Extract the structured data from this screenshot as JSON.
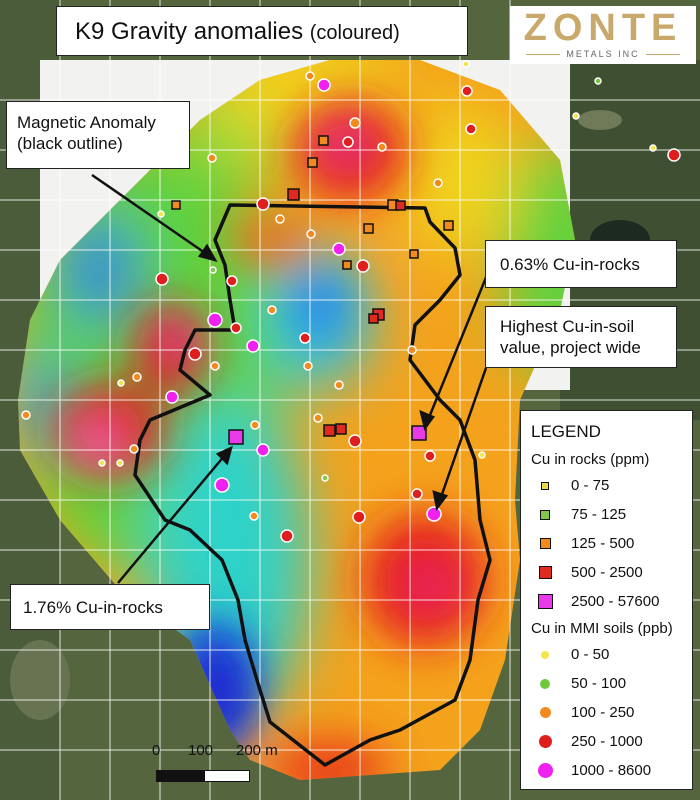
{
  "title": {
    "main": "K9 Gravity anomalies",
    "sub": "(coloured)"
  },
  "logo": {
    "name": "ZONTE",
    "tagline": "METALS INC",
    "color": "#c9a86b"
  },
  "callouts": {
    "magnetic_line1": "Magnetic Anomaly",
    "magnetic_line2": "(black outline)",
    "cu_063": "0.63% Cu-in-rocks",
    "highest_line1": "Highest Cu-in-soil",
    "highest_line2": "value, project wide",
    "cu_176": "1.76% Cu-in-rocks"
  },
  "legend": {
    "title": "LEGEND",
    "rocks_title": "Cu in rocks (ppm)",
    "rocks": [
      {
        "label": "0 - 75",
        "color": "#e8d84a",
        "shape": "square"
      },
      {
        "label": "75 - 125",
        "color": "#7fc84a",
        "shape": "square"
      },
      {
        "label": "125 - 500",
        "color": "#f28a1e",
        "shape": "square"
      },
      {
        "label": "500 - 2500",
        "color": "#e02a20",
        "shape": "square"
      },
      {
        "label": "2500 - 57600",
        "color": "#e83ae8",
        "shape": "square"
      }
    ],
    "soils_title": "Cu in MMI soils (ppb)",
    "soils": [
      {
        "label": "0 - 50",
        "color": "#f2e64a",
        "shape": "circle"
      },
      {
        "label": "50 - 100",
        "color": "#6fc83a",
        "shape": "circle"
      },
      {
        "label": "100 - 250",
        "color": "#f28a1e",
        "shape": "circle"
      },
      {
        "label": "250 - 1000",
        "color": "#e01e1e",
        "shape": "circle"
      },
      {
        "label": "1000 - 8600",
        "color": "#f020f0",
        "shape": "circle"
      }
    ]
  },
  "scale": {
    "label_0": "0",
    "label_100": "100",
    "label_200": "200 m"
  },
  "colors": {
    "outline": "#111111",
    "grid": "#ffffff",
    "background_imagery": "#5b6a4a"
  }
}
